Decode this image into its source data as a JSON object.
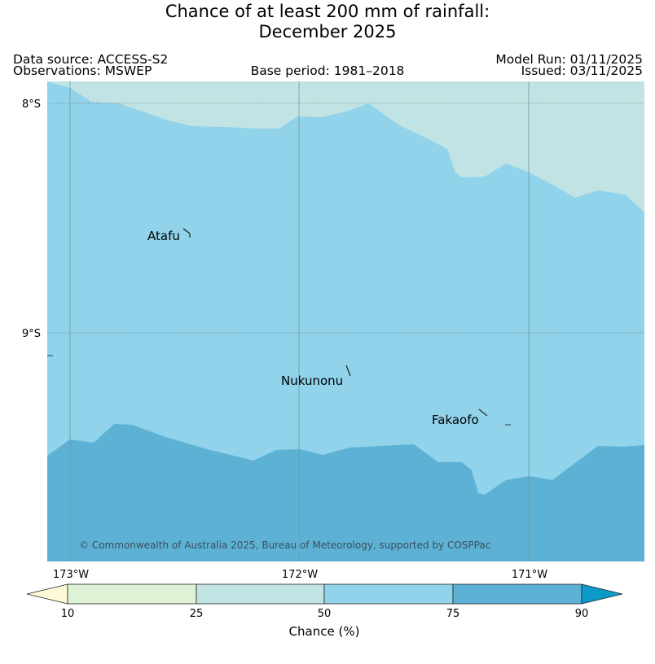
{
  "title": {
    "line1": "Chance of at least 200 mm of rainfall:",
    "line2": "December 2025"
  },
  "meta": {
    "data_source": "Data source: ACCESS-S2",
    "observations": "Observations: MSWEP",
    "base_period": "Base period: 1981–2018",
    "model_run": "Model Run: 01/11/2025",
    "issued": "Issued: 03/11/2025"
  },
  "map": {
    "lat_labels": [
      "8°S",
      "9°S"
    ],
    "lon_labels": [
      "173°W",
      "172°W",
      "171°W"
    ],
    "places": [
      "Atafu",
      "Nukunonu",
      "Fakaofo"
    ],
    "copyright": "© Commonwealth of Australia 2025, Bureau of Meteorology, supported by COSPPac"
  },
  "legend": {
    "title": "Chance (%)",
    "ticks": [
      "10",
      "25",
      "50",
      "75",
      "90"
    ],
    "bins": [
      {
        "range": "<10",
        "color": "#fdfbd7"
      },
      {
        "range": "10-25",
        "color": "#def2d6"
      },
      {
        "range": "25-50",
        "color": "#c2e3e4"
      },
      {
        "range": "50-75",
        "color": "#90d3ea"
      },
      {
        "range": "75-90",
        "color": "#5db1d5"
      },
      {
        "range": ">90",
        "color": "#0c9bc9"
      }
    ]
  }
}
